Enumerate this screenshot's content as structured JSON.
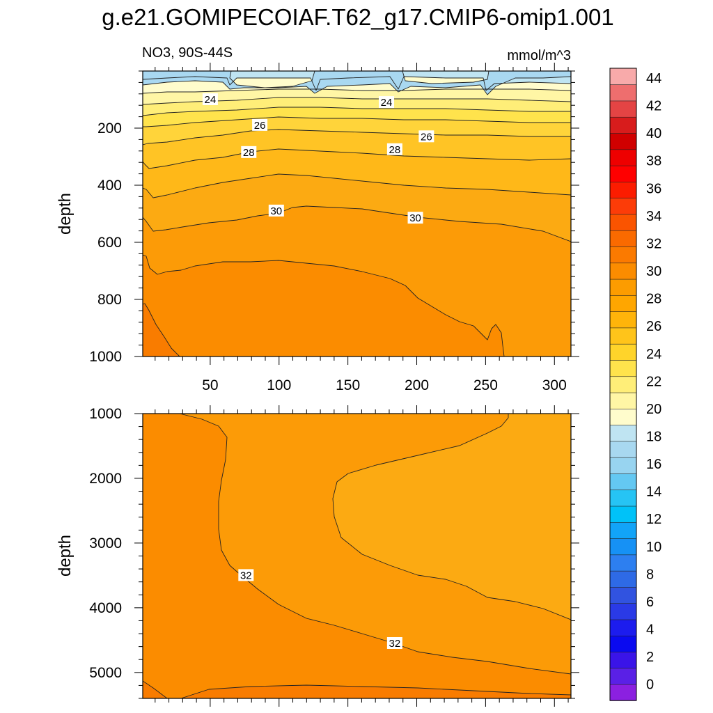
{
  "chart_data": {
    "type": "contour",
    "title": "g.e21.GOMIPECOIAF.T62_g17.CMIP6-omip1.001",
    "variable_label": "NO3, 90S-44S",
    "units_label": "mmol/m^3",
    "ylabel": "depth",
    "x_ticks": [
      50,
      100,
      150,
      200,
      250,
      300
    ],
    "xlim": [
      1,
      312
    ],
    "panels": [
      {
        "name": "upper",
        "ylim": [
          0,
          1000
        ],
        "y_ticks": [
          200,
          400,
          600,
          800,
          1000
        ],
        "contour_labels": [
          {
            "text": "24",
            "x": 50,
            "depth": 100
          },
          {
            "text": "24",
            "x": 178,
            "depth": 110
          },
          {
            "text": "26",
            "x": 86,
            "depth": 190
          },
          {
            "text": "26",
            "x": 207,
            "depth": 230
          },
          {
            "text": "28",
            "x": 78,
            "depth": 285
          },
          {
            "text": "28",
            "x": 184,
            "depth": 275
          },
          {
            "text": "30",
            "x": 98,
            "depth": 490
          },
          {
            "text": "30",
            "x": 199,
            "depth": 515
          }
        ]
      },
      {
        "name": "lower",
        "ylim": [
          1000,
          5400
        ],
        "y_ticks": [
          1000,
          2000,
          3000,
          4000,
          5000
        ],
        "contour_labels": [
          {
            "text": "32",
            "x": 76,
            "depth": 3500
          },
          {
            "text": "32",
            "x": 184,
            "depth": 4550
          }
        ]
      }
    ],
    "colorbar": {
      "levels": [
        0,
        2,
        4,
        6,
        8,
        10,
        12,
        14,
        16,
        18,
        20,
        22,
        24,
        26,
        28,
        30,
        32,
        34,
        36,
        38,
        40,
        42,
        44
      ],
      "colors": [
        "#8b20e0",
        "#5a20e6",
        "#3a14e8",
        "#0a0af0",
        "#1c1cee",
        "#2a3ae6",
        "#3153e0",
        "#2e6ae6",
        "#2d7ff0",
        "#1691f5",
        "#12a4f8",
        "#00c2f8",
        "#26c4f4",
        "#64c8f2",
        "#98d4f0",
        "#a8d8f0",
        "#bfe4f2",
        "#fffccc",
        "#fff6a5",
        "#ffee78",
        "#ffe34c",
        "#ffd42a",
        "#ffc41a",
        "#ffb40a",
        "#ffa600",
        "#fc9c00",
        "#fb8c00",
        "#fb7a00",
        "#fa6a00",
        "#fa5400",
        "#fc3c08",
        "#fc1c00",
        "#ff0000",
        "#ee0000",
        "#d00000",
        "#d81c1c",
        "#e44444",
        "#ee6e6e",
        "#f8aaaa"
      ]
    },
    "fill_colors": {
      "blue_surface": "#a9d8f1",
      "light_cream": "#fffccc",
      "pale_yellow": "#fff5a6",
      "yellow": "#ffeb6e",
      "gold": "#ffd43a",
      "amber": "#ffc025",
      "orange_30": "#fcaa12",
      "orange_31": "#fc9b07",
      "orange_32": "#fb8c00",
      "orange_33": "#f97c00"
    }
  }
}
